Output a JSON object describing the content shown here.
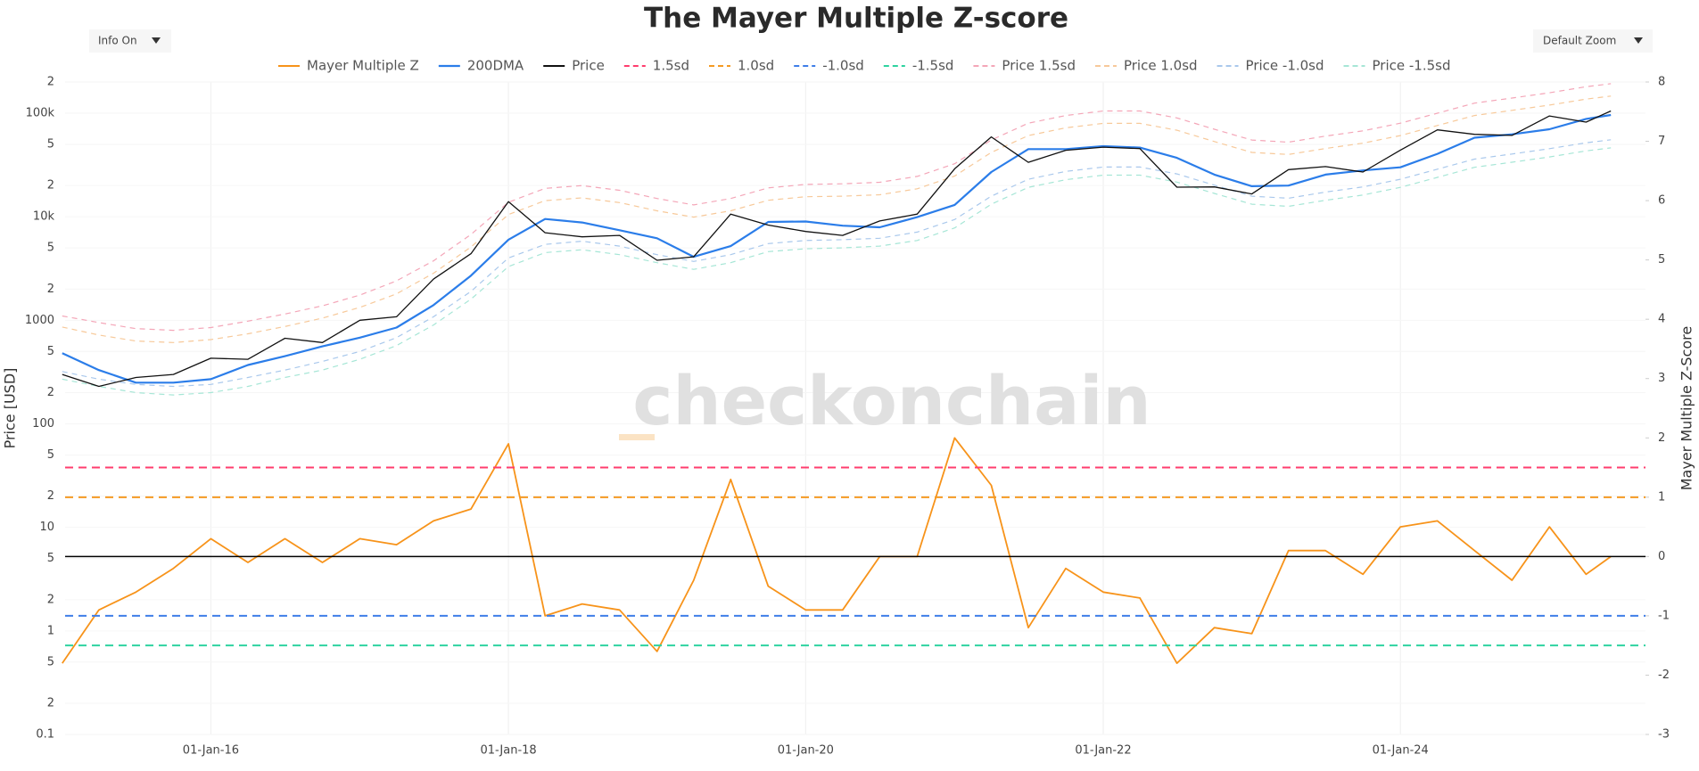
{
  "controls": {
    "info": "Info On",
    "zoom": "Default Zoom"
  },
  "watermark": "checkonchain",
  "chart_data": {
    "type": "line",
    "title": "The Mayer Multiple Z-score",
    "ylabel": "Price [USD]",
    "y2label": "Mayer Multiple Z-Score",
    "log_y": true,
    "grid": true,
    "legend": "top",
    "x": [
      "2015-01-01",
      "2015-04-01",
      "2015-07-01",
      "2015-10-01",
      "2016-01-01",
      "2016-04-01",
      "2016-07-01",
      "2016-10-01",
      "2017-01-01",
      "2017-04-01",
      "2017-07-01",
      "2017-10-01",
      "2018-01-01",
      "2018-04-01",
      "2018-07-01",
      "2018-10-01",
      "2019-01-01",
      "2019-04-01",
      "2019-07-01",
      "2019-10-01",
      "2020-01-01",
      "2020-04-01",
      "2020-07-01",
      "2020-10-01",
      "2021-01-01",
      "2021-04-01",
      "2021-07-01",
      "2021-10-01",
      "2022-01-01",
      "2022-04-01",
      "2022-07-01",
      "2022-10-01",
      "2023-01-01",
      "2023-04-01",
      "2023-07-01",
      "2023-10-01",
      "2024-01-01",
      "2024-04-01",
      "2024-07-01",
      "2024-10-01",
      "2025-01-01",
      "2025-04-01",
      "2025-06-01"
    ],
    "xlim": [
      "2015-01-08",
      "2025-08-25"
    ],
    "xticks": [
      {
        "value": "2016-01-01",
        "label": "01-Jan-16"
      },
      {
        "value": "2018-01-01",
        "label": "01-Jan-18"
      },
      {
        "value": "2020-01-01",
        "label": "01-Jan-20"
      },
      {
        "value": "2022-01-01",
        "label": "01-Jan-22"
      },
      {
        "value": "2024-01-01",
        "label": "01-Jan-24"
      }
    ],
    "ylim": [
      0.1,
      200000
    ],
    "yticks": [
      0.1,
      {
        "value": 0.2,
        "label": "2"
      },
      {
        "value": 0.5,
        "label": "5"
      },
      1,
      2,
      5,
      10,
      {
        "value": 20,
        "label": "2"
      },
      {
        "value": 50,
        "label": "5"
      },
      100,
      {
        "value": 200,
        "label": "2"
      },
      {
        "value": 500,
        "label": "5"
      },
      1000,
      {
        "value": 2000,
        "label": "2"
      },
      {
        "value": 5000,
        "label": "5"
      },
      {
        "value": 10000,
        "label": "10k"
      },
      {
        "value": 20000,
        "label": "2"
      },
      {
        "value": 50000,
        "label": "5"
      },
      {
        "value": 100000,
        "label": "100k"
      },
      {
        "value": 200000,
        "label": "2"
      }
    ],
    "y2lim": [
      -3,
      8
    ],
    "y2ticks": [
      -3,
      -2,
      -1,
      0,
      1,
      2,
      3,
      4,
      5,
      6,
      7,
      8
    ],
    "series": [
      {
        "name": "Mayer Multiple Z",
        "color": "#f7931a",
        "axis": "y2",
        "values": [
          -1.8,
          -0.9,
          -0.6,
          -0.2,
          0.3,
          -0.1,
          0.3,
          -0.1,
          0.3,
          0.2,
          0.6,
          0.8,
          1.9,
          -1.0,
          -0.8,
          -0.9,
          -1.6,
          -0.4,
          1.3,
          -0.5,
          -0.9,
          -0.9,
          0.0,
          0.0,
          2.0,
          1.2,
          -1.2,
          -0.2,
          -0.6,
          -0.7,
          -1.8,
          -1.2,
          -1.3,
          0.1,
          0.1,
          -0.3,
          0.5,
          0.6,
          0.1,
          -0.4,
          0.5,
          -0.3,
          0.0
        ]
      },
      {
        "name": "200DMA",
        "color": "#2b7de9",
        "values": [
          480,
          330,
          250,
          250,
          270,
          370,
          450,
          560,
          680,
          850,
          1400,
          2700,
          6000,
          9500,
          8800,
          7400,
          6200,
          4100,
          5200,
          8900,
          9000,
          8200,
          7900,
          9900,
          13000,
          27000,
          45000,
          45000,
          48000,
          46500,
          37000,
          25500,
          19700,
          20000,
          25500,
          28000,
          30000,
          40500,
          58000,
          62500,
          70000,
          88000,
          96000
        ]
      },
      {
        "name": "Price",
        "color": "#111111",
        "values": [
          300,
          230,
          280,
          300,
          430,
          420,
          670,
          610,
          1000,
          1080,
          2500,
          4400,
          14000,
          7000,
          6400,
          6600,
          3800,
          4100,
          10600,
          8300,
          7200,
          6600,
          9100,
          10600,
          29000,
          59000,
          33500,
          43800,
          47000,
          45500,
          19300,
          19400,
          16600,
          28500,
          30500,
          27000,
          44000,
          69000,
          62500,
          61000,
          94000,
          82000,
          105000
        ]
      },
      {
        "name": "1.5sd",
        "color": "#ff3d6e",
        "axis": "y2",
        "dash": true,
        "value": 1.5
      },
      {
        "name": "1.0sd",
        "color": "#f59a23",
        "axis": "y2",
        "dash": true,
        "value": 1
      },
      {
        "name": "-1.0sd",
        "color": "#3e7ee8",
        "axis": "y2",
        "dash": true,
        "value": -1
      },
      {
        "name": "-1.5sd",
        "color": "#2ed3a0",
        "axis": "y2",
        "dash": true,
        "value": -1.5
      },
      {
        "name": "Price 1.5sd",
        "color": "#f4a6b8",
        "dash": true,
        "values": [
          1100,
          950,
          830,
          800,
          850,
          980,
          1150,
          1380,
          1750,
          2400,
          3750,
          6750,
          13800,
          18800,
          20000,
          18000,
          15000,
          13000,
          15000,
          19000,
          20500,
          20800,
          21500,
          24500,
          32500,
          55000,
          80000,
          95000,
          105000,
          105000,
          90000,
          70000,
          55000,
          52500,
          60000,
          67500,
          80000,
          100000,
          125000,
          140000,
          157500,
          180000,
          192500
        ]
      },
      {
        "name": "Price 1.0sd",
        "color": "#f7c99a",
        "dash": true,
        "values": [
          860,
          720,
          630,
          610,
          650,
          740,
          870,
          1050,
          1330,
          1800,
          2850,
          5100,
          10500,
          14300,
          15200,
          13700,
          11400,
          9900,
          11400,
          14400,
          15600,
          15800,
          16300,
          18600,
          24700,
          41800,
          60800,
          72200,
          79800,
          79800,
          68400,
          53200,
          41800,
          39900,
          45600,
          51300,
          60800,
          76000,
          95000,
          106400,
          119700,
          136800,
          146300
        ]
      },
      {
        "name": "Price -1.0sd",
        "color": "#a9c8ec",
        "dash": true,
        "values": [
          320,
          270,
          240,
          230,
          240,
          280,
          330,
          400,
          500,
          680,
          1080,
          1900,
          4000,
          5400,
          5800,
          5200,
          4300,
          3700,
          4300,
          5500,
          5900,
          6000,
          6200,
          7100,
          9400,
          15800,
          23000,
          27400,
          30200,
          30200,
          25900,
          20200,
          15800,
          15100,
          17300,
          19400,
          23000,
          28800,
          36000,
          40300,
          45400,
          51800,
          55400
        ]
      },
      {
        "name": "Price -1.5sd",
        "color": "#a6e6d6",
        "dash": true,
        "values": [
          270,
          230,
          200,
          190,
          200,
          230,
          280,
          330,
          420,
          570,
          900,
          1600,
          3300,
          4500,
          4800,
          4300,
          3600,
          3100,
          3600,
          4600,
          4900,
          5000,
          5200,
          5900,
          7800,
          13200,
          19200,
          22800,
          25200,
          25200,
          21600,
          16800,
          13200,
          12600,
          14400,
          16200,
          19200,
          24000,
          30000,
          33600,
          37800,
          43200,
          46200
        ]
      },
      {
        "color": "#000000",
        "axis": "y2",
        "value": 0
      }
    ]
  }
}
